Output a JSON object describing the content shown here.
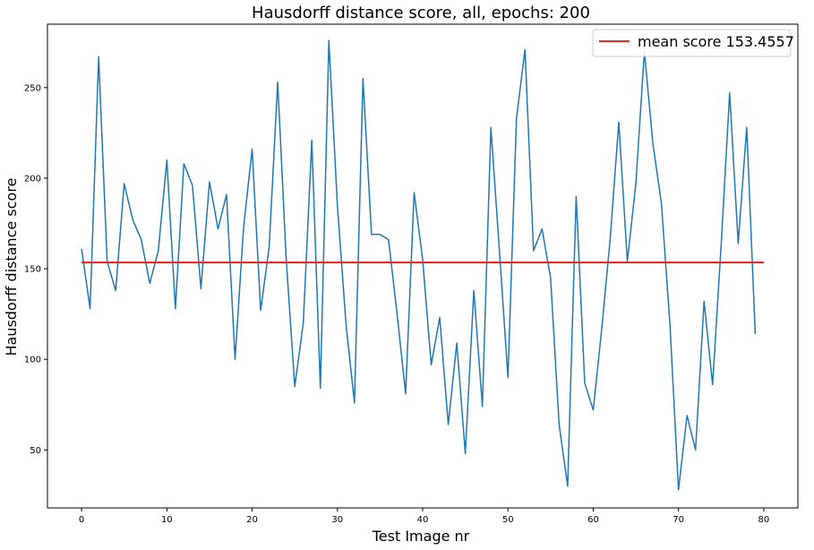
{
  "chart_data": {
    "type": "line",
    "title": "Hausdorff distance score, all, epochs: 200",
    "xlabel": "Test Image nr",
    "ylabel": "Hausdorff distance score",
    "xlim": [
      -4,
      84
    ],
    "ylim": [
      18,
      285
    ],
    "xticks": [
      0,
      10,
      20,
      30,
      40,
      50,
      60,
      70,
      80
    ],
    "yticks": [
      50,
      100,
      150,
      200,
      250
    ],
    "grid": false,
    "legend_position": "top-right",
    "series": [
      {
        "color": "#1f77b4",
        "x": [
          0,
          1,
          2,
          3,
          4,
          5,
          6,
          7,
          8,
          9,
          10,
          11,
          12,
          13,
          14,
          15,
          16,
          17,
          18,
          19,
          20,
          21,
          22,
          23,
          24,
          25,
          26,
          27,
          28,
          29,
          30,
          31,
          32,
          33,
          34,
          35,
          36,
          37,
          38,
          39,
          40,
          41,
          42,
          43,
          44,
          45,
          46,
          47,
          48,
          49,
          50,
          51,
          52,
          53,
          54,
          55,
          56,
          57,
          58,
          59,
          60,
          61,
          62,
          63,
          64,
          65,
          66,
          67,
          68,
          69,
          70,
          71,
          72,
          73,
          74,
          75,
          76,
          77,
          78,
          79
        ],
        "values": [
          161,
          128,
          267,
          154,
          138,
          197,
          177,
          166,
          142,
          160,
          210,
          128,
          208,
          196,
          139,
          198,
          172,
          191,
          100,
          173,
          216,
          127,
          162,
          253,
          155,
          85,
          120,
          221,
          84,
          276,
          185,
          120,
          76,
          255,
          169,
          169,
          166,
          125,
          81,
          192,
          155,
          97,
          123,
          64,
          109,
          48,
          138,
          74,
          228,
          160,
          90,
          233,
          271,
          160,
          172,
          145,
          64,
          30,
          190,
          87,
          72,
          117,
          167,
          231,
          154,
          197,
          270,
          219,
          186,
          119,
          28,
          69,
          50,
          132,
          86,
          163,
          247,
          164,
          228,
          114
        ]
      },
      {
        "name": "mean score 153.4557",
        "color": "#e8291c",
        "x": [
          0,
          80
        ],
        "values": [
          153.4557,
          153.4557
        ]
      }
    ]
  }
}
